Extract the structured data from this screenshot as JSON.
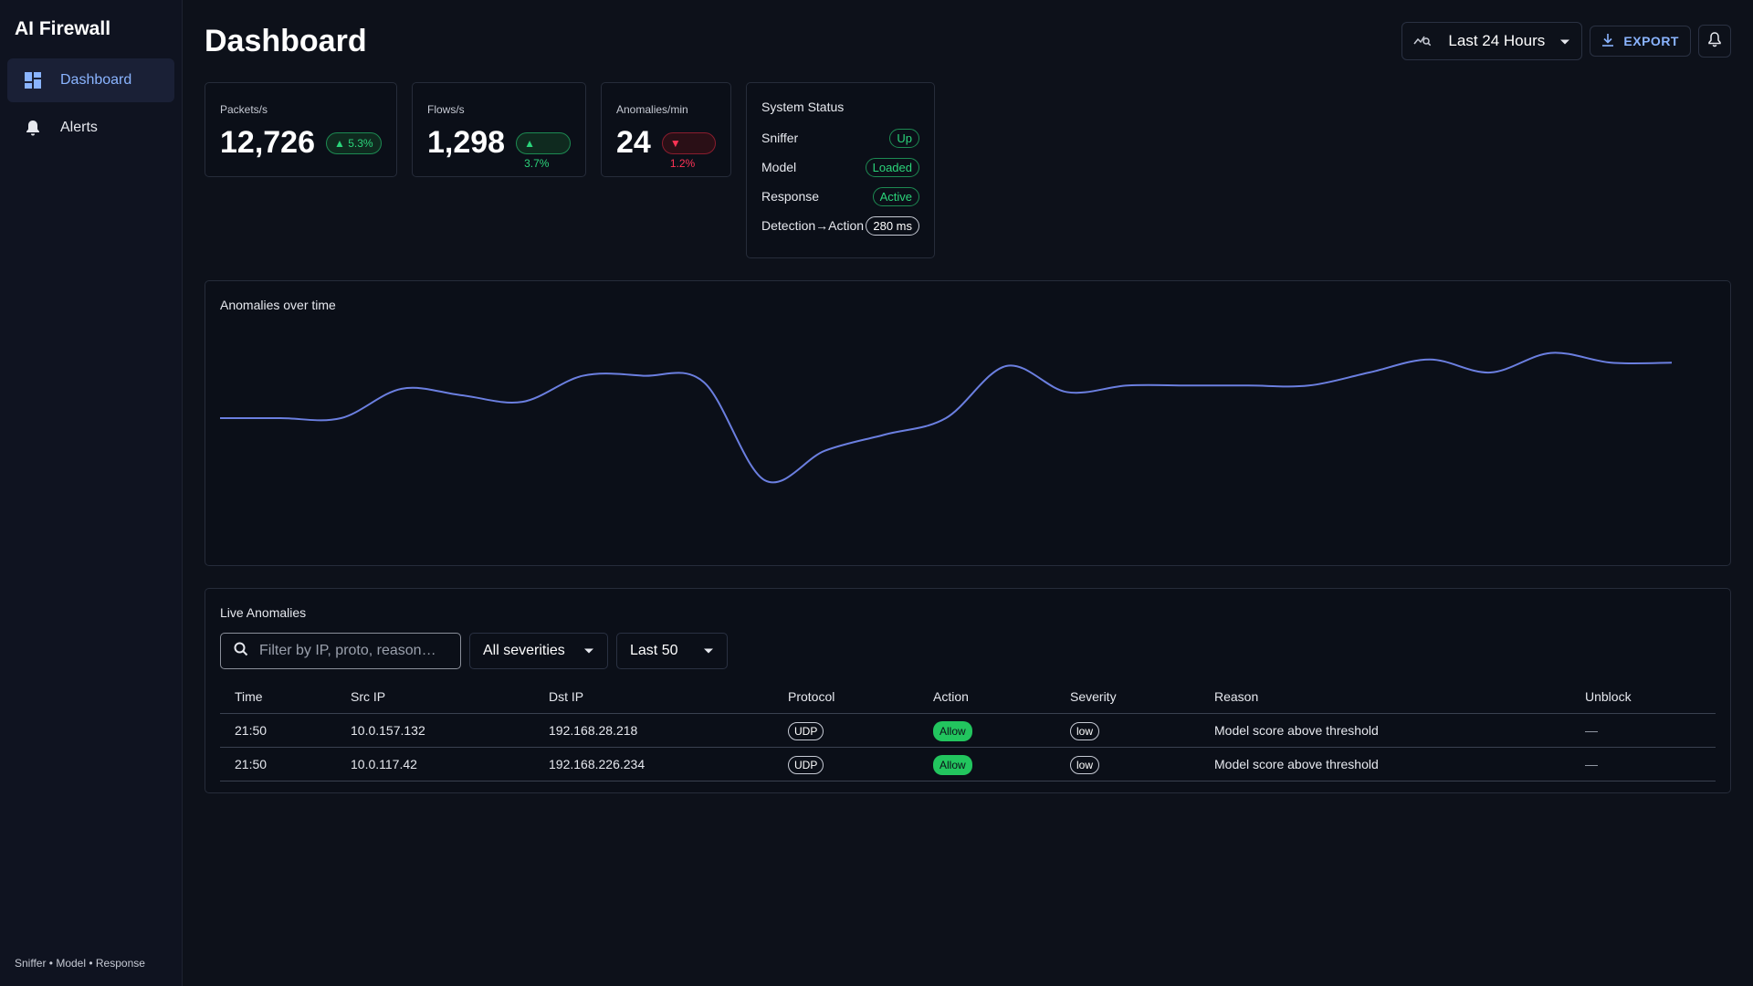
{
  "sidebar": {
    "brand": "AI Firewall",
    "items": [
      {
        "label": "Dashboard",
        "icon": "dashboard-icon",
        "active": true
      },
      {
        "label": "Alerts",
        "icon": "bell-icon",
        "active": false
      }
    ],
    "footer": "Sniffer • Model • Response"
  },
  "header": {
    "title": "Dashboard",
    "range": "Last 24 Hours",
    "export_label": "EXPORT"
  },
  "stats": [
    {
      "label": "Packets/s",
      "value": "12,726",
      "delta": "▲ 5.3%",
      "direction": "up"
    },
    {
      "label": "Flows/s",
      "value": "1,298",
      "delta": "▲ 3.7%",
      "direction": "up"
    },
    {
      "label": "Anomalies/min",
      "value": "24",
      "delta": "▼ 1.2%",
      "direction": "down"
    }
  ],
  "status": {
    "title": "System Status",
    "rows": [
      {
        "label": "Sniffer",
        "value": "Up"
      },
      {
        "label": "Model",
        "value": "Loaded"
      },
      {
        "label": "Response",
        "value": "Active"
      },
      {
        "label": "Detection→Action",
        "value": "280 ms"
      }
    ]
  },
  "chart": {
    "title": "Anomalies over time",
    "line_color": "#6b7fe0"
  },
  "chart_data": {
    "type": "line",
    "title": "Anomalies over time",
    "xlabel": "",
    "ylabel": "",
    "values": [
      10.2,
      10.2,
      10.2,
      11.1,
      10.9,
      10.7,
      11.5,
      11.5,
      11.3,
      8.3,
      9.2,
      9.7,
      10.2,
      11.8,
      11.0,
      11.2,
      11.2,
      11.2,
      11.2,
      11.6,
      12.0,
      11.6,
      12.2,
      11.9,
      11.9
    ],
    "ylim": [
      6,
      13
    ],
    "grid": false,
    "legend": false
  },
  "table": {
    "title": "Live Anomalies",
    "search_placeholder": "Filter by IP, proto, reason…",
    "severity_filter": "All severities",
    "count_filter": "Last 50",
    "columns": [
      "Time",
      "Src IP",
      "Dst IP",
      "Protocol",
      "Action",
      "Severity",
      "Reason",
      "Unblock"
    ],
    "rows": [
      {
        "time": "21:50",
        "src": "10.0.157.132",
        "dst": "192.168.28.218",
        "proto": "UDP",
        "action": "Allow",
        "severity": "low",
        "reason": "Model score above threshold",
        "unblock": "—"
      },
      {
        "time": "21:50",
        "src": "10.0.117.42",
        "dst": "192.168.226.234",
        "proto": "UDP",
        "action": "Allow",
        "severity": "low",
        "reason": "Model score above threshold",
        "unblock": "—"
      }
    ]
  }
}
